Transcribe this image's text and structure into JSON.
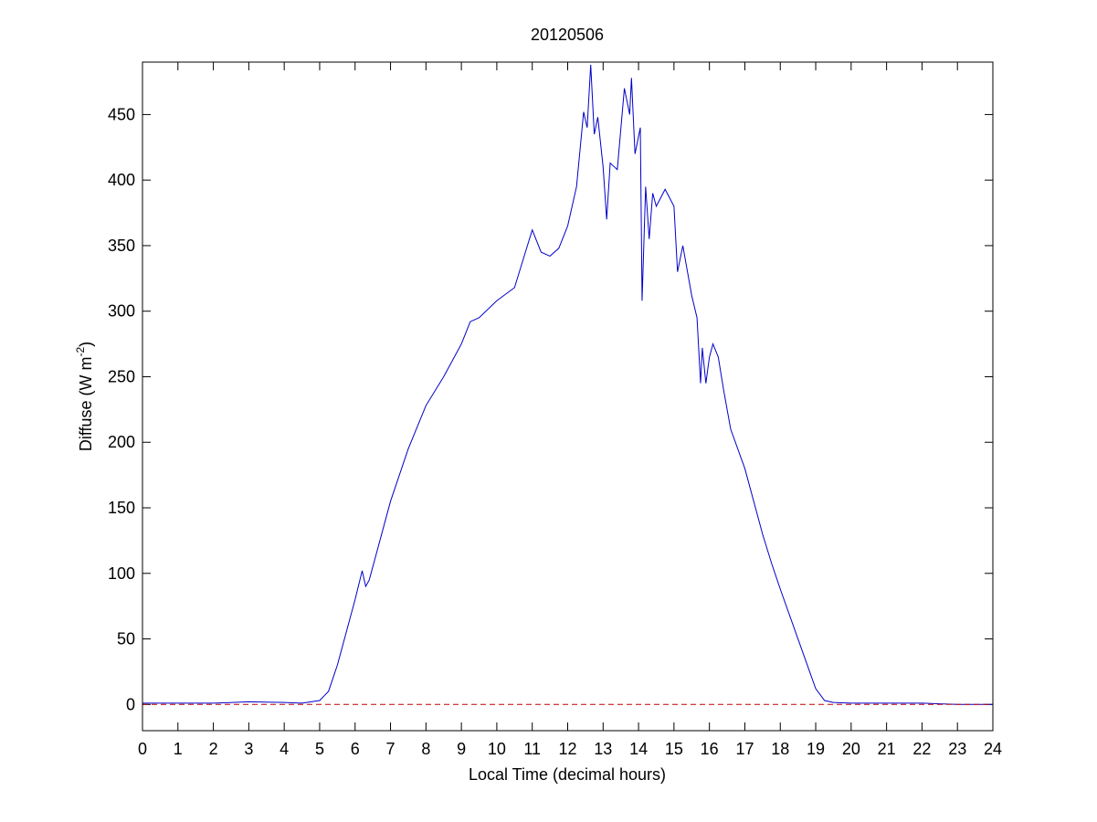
{
  "chart_data": {
    "type": "line",
    "title": "20120506",
    "xlabel": "Local Time (decimal hours)",
    "ylabel": {
      "text": "Diffuse (W m",
      "superscript": "-2",
      "suffix": ")"
    },
    "xlim": [
      0,
      24
    ],
    "ylim": [
      -20,
      490
    ],
    "xticks": [
      0,
      1,
      2,
      3,
      4,
      5,
      6,
      7,
      8,
      9,
      10,
      11,
      12,
      13,
      14,
      15,
      16,
      17,
      18,
      19,
      20,
      21,
      22,
      23,
      24
    ],
    "yticks": [
      0,
      50,
      100,
      150,
      200,
      250,
      300,
      350,
      400,
      450
    ],
    "series": [
      {
        "color": "#0000c8",
        "x": [
          0,
          1,
          2,
          3,
          4,
          4.5,
          5,
          5.25,
          5.5,
          5.75,
          6,
          6.2,
          6.3,
          6.4,
          6.6,
          7,
          7.5,
          8,
          8.5,
          9,
          9.25,
          9.5,
          10,
          10.5,
          10.75,
          11,
          11.25,
          11.5,
          11.75,
          12,
          12.25,
          12.45,
          12.55,
          12.65,
          12.75,
          12.85,
          13,
          13.1,
          13.2,
          13.4,
          13.6,
          13.75,
          13.8,
          13.9,
          14.05,
          14.1,
          14.2,
          14.3,
          14.4,
          14.5,
          14.75,
          15,
          15.1,
          15.25,
          15.5,
          15.65,
          15.75,
          15.8,
          15.9,
          16,
          16.1,
          16.25,
          16.4,
          16.6,
          17,
          17.5,
          17.75,
          18,
          18.5,
          19,
          19.25,
          19.5,
          20,
          21,
          22,
          22.5,
          23,
          24
        ],
        "values": [
          1,
          1,
          1,
          2,
          1.5,
          1,
          3,
          10,
          30,
          55,
          80,
          102,
          90,
          95,
          115,
          155,
          195,
          228,
          250,
          275,
          292,
          295,
          308,
          318,
          340,
          362,
          345,
          342,
          348,
          365,
          395,
          452,
          440,
          488,
          435,
          448,
          410,
          370,
          413,
          408,
          470,
          450,
          478,
          420,
          440,
          308,
          395,
          355,
          390,
          380,
          393,
          380,
          330,
          350,
          312,
          295,
          245,
          272,
          245,
          265,
          275,
          265,
          240,
          210,
          180,
          130,
          108,
          88,
          50,
          12,
          3,
          1.5,
          1,
          1,
          1,
          0.5,
          0,
          0
        ]
      },
      {
        "color": "#c00000",
        "dash": true,
        "x": [
          0,
          24
        ],
        "values": [
          0,
          0
        ]
      }
    ]
  }
}
